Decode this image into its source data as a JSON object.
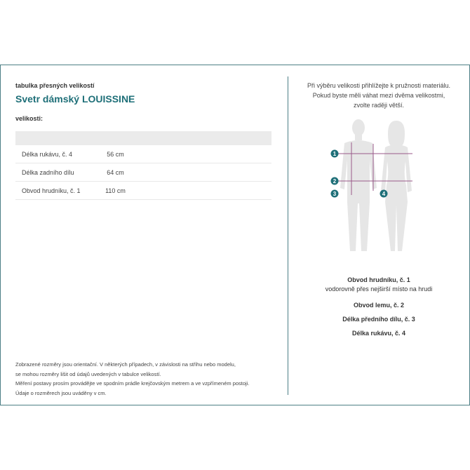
{
  "left": {
    "subtitle": "tabulka přesných velikostí",
    "title": "Svetr dámský LOUISSINE",
    "sizes_label": "velikosti:",
    "rows": [
      {
        "name": "Délka rukávu, č. 4",
        "value": "56 cm"
      },
      {
        "name": "Délka zadního dílu",
        "value": "64 cm"
      },
      {
        "name": "Obvod hrudníku, č. 1",
        "value": "110 cm"
      }
    ],
    "notes": [
      "Zobrazené rozměry jsou orientační. V některých případech, v závislosti na střihu nebo modelu,",
      "se mohou rozměry lišit od údajů uvedených v tabulce velikostí.",
      "Měření postavy prosím provádějte ve spodním prádle krejčovským metrem a ve vzpřímeném postoji.",
      "Údaje o rozměrech jsou uváděny v cm."
    ]
  },
  "right": {
    "hint": [
      "Při výběru velikosti přihlížejte k pružnosti materiálu.",
      "Pokud byste měli váhat mezi dvěma velikostmi,",
      "zvolte raději větší."
    ],
    "markers": [
      "1",
      "2",
      "3",
      "4"
    ],
    "legend": [
      {
        "title": "Obvod hrudníku, č. 1",
        "desc": "vodorovně přes nejširší místo na hrudi"
      },
      {
        "title": "Obvod lemu, č. 2"
      },
      {
        "title": "Délka předního dílu, č. 3"
      },
      {
        "title": "Délka rukávu, č. 4"
      }
    ]
  },
  "colors": {
    "accent": "#1e6f78",
    "border": "#4d7f86",
    "measure_line": "#9a5a8a",
    "silhouette": "#e6e6e6"
  }
}
